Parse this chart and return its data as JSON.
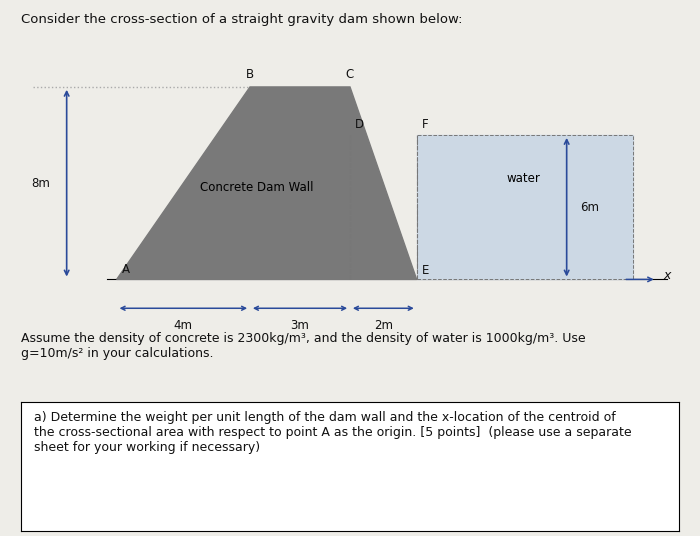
{
  "title": "Consider the cross-section of a straight gravity dam shown below:",
  "bg_color": "#eeede8",
  "dam_color": "#797979",
  "water_color": "#ccd8e4",
  "label_8m": "8m",
  "label_water": "water",
  "label_6m": "6m",
  "label_concrete": "Concrete Dam Wall",
  "label_4m": "4m",
  "label_3m": "3m",
  "label_2m": "2m",
  "label_x": "x",
  "assume_text": "Assume the density of concrete is 2300kg/m³, and the density of water is 1000kg/m³. Use\ng=10m/s² in your calculations.",
  "question_text": "a) Determine the weight per unit length of the dam wall and the x-location of the centroid of\nthe cross-sectional area with respect to point A as the origin. [5 points]  (please use a separate\nsheet for your working if necessary)",
  "arrow_color": "#2a4a9a",
  "text_color": "#111111"
}
